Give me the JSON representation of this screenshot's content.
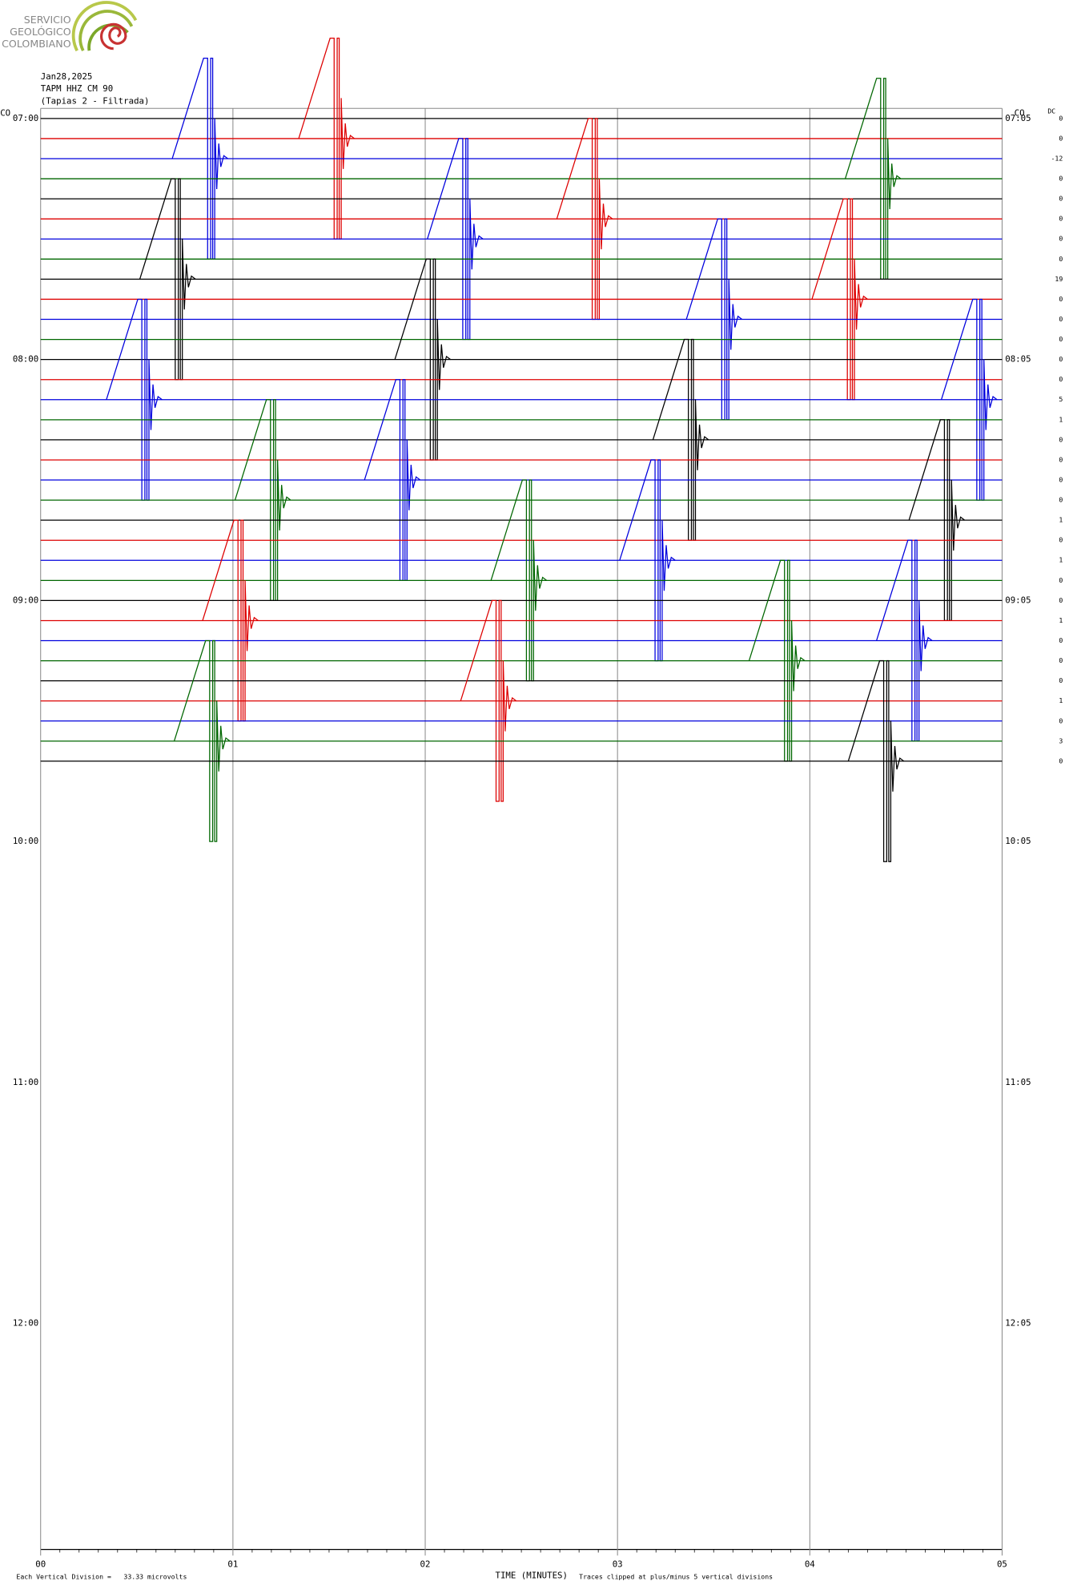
{
  "logo": [
    "SERVICIO",
    "GEOLÓGICO",
    "COLOMBIANO"
  ],
  "chart_data": {
    "type": "helicorder",
    "title": [
      "Jan28,2025",
      "TAPM HHZ CM 90",
      "(Tapias 2 - Filtrada)"
    ],
    "network_left": "CO",
    "network_right": "CO",
    "dc_header": "DC",
    "left_labels": [
      "07:00",
      "08:00",
      "09:00",
      "10:00",
      "11:00",
      "12:00"
    ],
    "right_labels": [
      "07:05",
      "08:05",
      "09:05",
      "10:05",
      "11:05",
      "12:05"
    ],
    "xlim": [
      0,
      5
    ],
    "xticks": [
      {
        "value": 0,
        "label": "00"
      },
      {
        "value": 1,
        "label": "01"
      },
      {
        "value": 2,
        "label": "02"
      },
      {
        "value": 3,
        "label": "03"
      },
      {
        "value": 4,
        "label": "04"
      },
      {
        "value": 5,
        "label": "05"
      }
    ],
    "xlabel": "TIME (MINUTES)",
    "footer_left": "Each Vertical Division =",
    "footer_value": "33.33 microvolts",
    "footer_right": "Traces clipped at plus/minus 5 vertical divisions",
    "colors": [
      "#000000",
      "#dd0000",
      "#0000dd",
      "#006600"
    ],
    "traces": [
      {
        "dc": 0,
        "pulses": []
      },
      {
        "dc": 0,
        "pulses": [
          1.342
        ]
      },
      {
        "dc": -12,
        "pulses": [
          0.684
        ]
      },
      {
        "dc": 0,
        "pulses": [
          4.184
        ]
      },
      {
        "dc": 0,
        "pulses": []
      },
      {
        "dc": 0,
        "pulses": [
          2.684
        ]
      },
      {
        "dc": 0,
        "pulses": [
          2.011
        ]
      },
      {
        "dc": 0,
        "pulses": []
      },
      {
        "dc": 19,
        "pulses": [
          0.516
        ]
      },
      {
        "dc": 0,
        "pulses": [
          4.011
        ]
      },
      {
        "dc": 0,
        "pulses": [
          3.358
        ]
      },
      {
        "dc": 0,
        "pulses": []
      },
      {
        "dc": 0,
        "pulses": [
          1.842
        ]
      },
      {
        "dc": 0,
        "pulses": []
      },
      {
        "dc": 5,
        "pulses": [
          0.342,
          4.684
        ]
      },
      {
        "dc": 1,
        "pulses": []
      },
      {
        "dc": 0,
        "pulses": [
          3.184
        ]
      },
      {
        "dc": 0,
        "pulses": []
      },
      {
        "dc": 0,
        "pulses": [
          1.684
        ]
      },
      {
        "dc": 0,
        "pulses": [
          1.011
        ]
      },
      {
        "dc": 1,
        "pulses": [
          4.516
        ]
      },
      {
        "dc": 0,
        "pulses": []
      },
      {
        "dc": 1,
        "pulses": [
          3.011
        ]
      },
      {
        "dc": 0,
        "pulses": [
          2.342
        ]
      },
      {
        "dc": 0,
        "pulses": []
      },
      {
        "dc": 1,
        "pulses": [
          0.842
        ]
      },
      {
        "dc": 0,
        "pulses": [
          4.347
        ]
      },
      {
        "dc": 0,
        "pulses": [
          3.684
        ]
      },
      {
        "dc": 0,
        "pulses": []
      },
      {
        "dc": 1,
        "pulses": [
          2.184
        ]
      },
      {
        "dc": 0,
        "pulses": []
      },
      {
        "dc": 3,
        "pulses": [
          0.695
        ]
      },
      {
        "dc": 0,
        "pulses": [
          4.2
        ]
      }
    ]
  }
}
